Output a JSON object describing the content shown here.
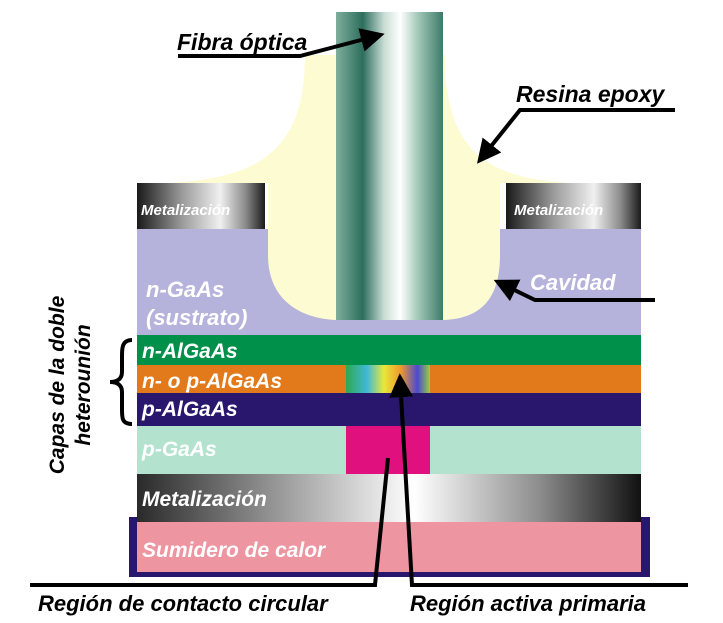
{
  "labels": {
    "fibra": "Fibra óptica",
    "resina": "Resina epoxy",
    "metal_left": "Metalización",
    "metal_right": "Metalización",
    "ngaas_1": "n-GaAs",
    "ngaas_2": "(sustrato)",
    "cavidad": "Cavidad",
    "capas_1": "Capas de la doble",
    "capas_2": "heterounión",
    "n_algaas": "n-AlGaAs",
    "np_algaas": "n- o p-AlGaAs",
    "p_algaas": "p-AlGaAs",
    "p_gaas": "p-GaAs",
    "metal_bottom": "Metalización",
    "sumidero": "Sumidero de calor",
    "region_contacto": "Región de contacto circular",
    "region_activa": "Región activa primaria"
  },
  "colors": {
    "resin": "#fdfbd2",
    "substrate": "#b5b2dc",
    "n_algaas": "#00904a",
    "np_algaas": "#e27a1b",
    "p_algaas": "#29176e",
    "p_gaas": "#b3e2cf",
    "contact": "#e0117f",
    "heatsink": "#ed95a0",
    "heatsink_border": "#29176e"
  }
}
